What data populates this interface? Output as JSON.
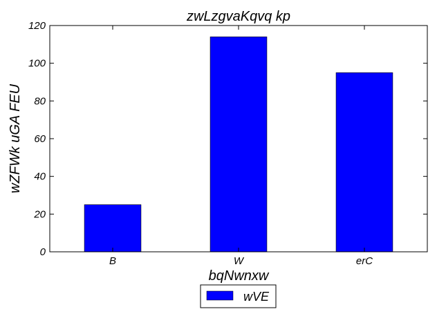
{
  "chart_data": {
    "type": "bar",
    "title": "zwLzgvaKqvq kp",
    "xlabel": "bqNwnxw",
    "ylabel": "wZFWk uGA FEU",
    "categories": [
      "B",
      "W",
      "erC"
    ],
    "series": [
      {
        "name": "wVE",
        "values": [
          25,
          114,
          95
        ],
        "color": "#0000ff"
      }
    ],
    "ylim": [
      0,
      120
    ],
    "yticks": [
      0,
      20,
      40,
      60,
      80,
      100,
      120
    ],
    "grid": false,
    "legend": "bottom-center"
  }
}
